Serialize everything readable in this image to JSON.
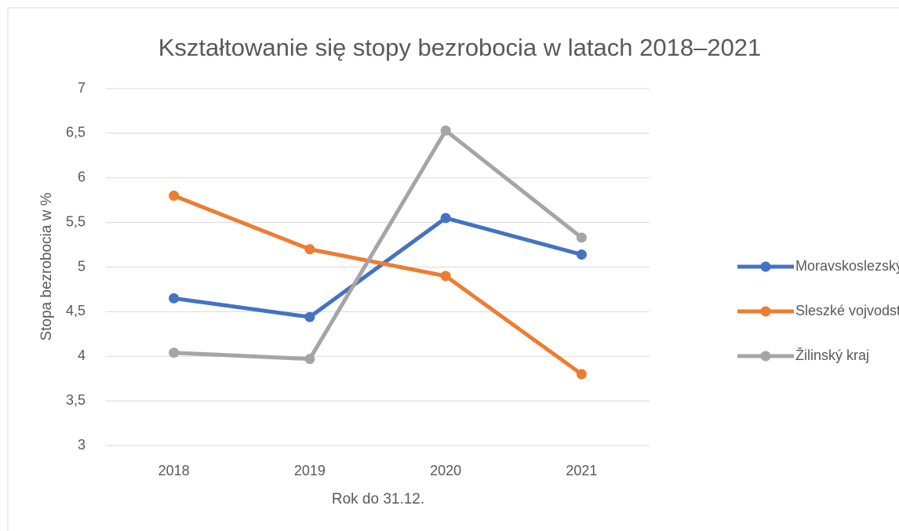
{
  "chart_data": {
    "type": "line",
    "title": "Kształtowanie się stopy bezrobocia w latach 2018–2021",
    "x_label": "Rok do 31.12.",
    "y_label": "Stopa bezrobocia w %",
    "categories": [
      "2018",
      "2019",
      "2020",
      "2021"
    ],
    "series": [
      {
        "name": "Moravskoslezský kraj",
        "color": "#4472c4",
        "values": [
          4.65,
          4.44,
          5.55,
          5.14
        ]
      },
      {
        "name": "Sleszké vojvodství",
        "color": "#ed7d31",
        "values": [
          5.8,
          5.2,
          4.9,
          3.8
        ]
      },
      {
        "name": "Žilinský kraj",
        "color": "#a5a5a5",
        "values": [
          4.04,
          3.97,
          6.53,
          5.33
        ]
      }
    ],
    "ylim": [
      3,
      7
    ],
    "yticks": [
      3,
      {
        "value": 3.5,
        "label": "3,5"
      },
      4,
      {
        "value": 4.5,
        "label": "4,5"
      },
      5,
      {
        "value": 5.5,
        "label": "5,5"
      },
      6,
      {
        "value": 6.5,
        "label": "6,5"
      },
      7
    ],
    "grid": true,
    "legend": "right"
  }
}
